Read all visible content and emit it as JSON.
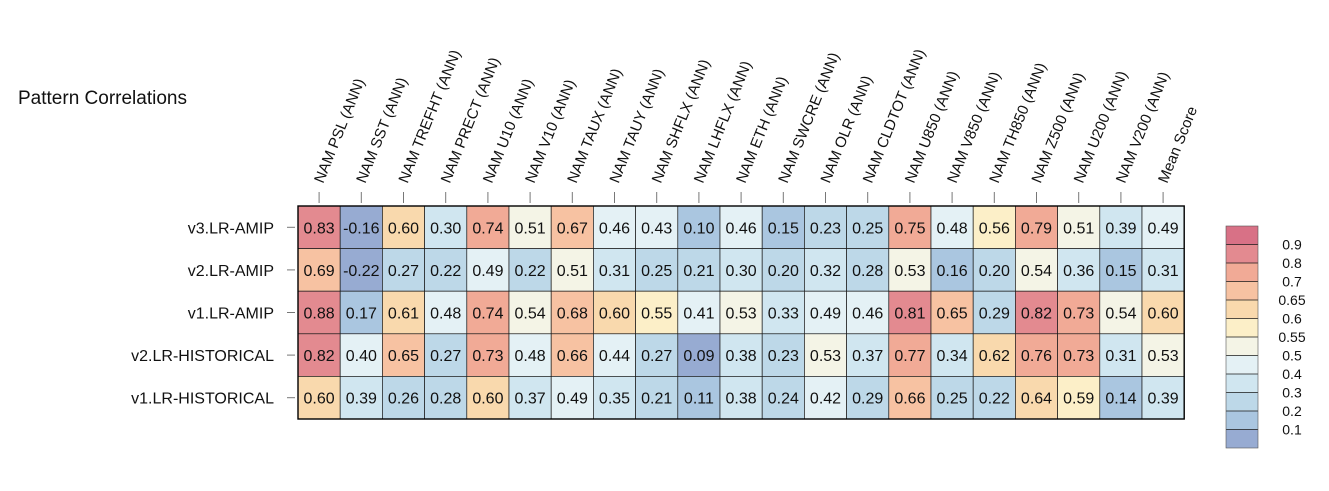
{
  "title": "Pattern Correlations",
  "chart_data": {
    "type": "heatmap",
    "rows": [
      "v3.LR-AMIP",
      "v2.LR-AMIP",
      "v1.LR-AMIP",
      "v2.LR-HISTORICAL",
      "v1.LR-HISTORICAL"
    ],
    "columns": [
      "NAM PSL (ANN)",
      "NAM SST (ANN)",
      "NAM TREFHT (ANN)",
      "NAM PRECT (ANN)",
      "NAM U10 (ANN)",
      "NAM V10 (ANN)",
      "NAM TAUX (ANN)",
      "NAM TAUY (ANN)",
      "NAM SHFLX (ANN)",
      "NAM LHFLX (ANN)",
      "NAM ETH (ANN)",
      "NAM SWCRE (ANN)",
      "NAM OLR (ANN)",
      "NAM CLDTOT (ANN)",
      "NAM U850 (ANN)",
      "NAM V850 (ANN)",
      "NAM TH850 (ANN)",
      "NAM Z500 (ANN)",
      "NAM U200 (ANN)",
      "NAM V200 (ANN)",
      "Mean Score"
    ],
    "values": [
      [
        0.83,
        -0.16,
        0.6,
        0.3,
        0.74,
        0.51,
        0.67,
        0.46,
        0.43,
        0.1,
        0.46,
        0.15,
        0.23,
        0.25,
        0.75,
        0.48,
        0.56,
        0.79,
        0.51,
        0.39,
        0.49
      ],
      [
        0.69,
        -0.22,
        0.27,
        0.22,
        0.49,
        0.22,
        0.51,
        0.31,
        0.25,
        0.21,
        0.3,
        0.2,
        0.32,
        0.28,
        0.53,
        0.16,
        0.2,
        0.54,
        0.36,
        0.15,
        0.31
      ],
      [
        0.88,
        0.17,
        0.61,
        0.48,
        0.74,
        0.54,
        0.68,
        0.6,
        0.55,
        0.41,
        0.53,
        0.33,
        0.49,
        0.46,
        0.81,
        0.65,
        0.29,
        0.82,
        0.73,
        0.54,
        0.6
      ],
      [
        0.82,
        0.4,
        0.65,
        0.27,
        0.73,
        0.48,
        0.66,
        0.44,
        0.27,
        0.09,
        0.38,
        0.23,
        0.53,
        0.37,
        0.77,
        0.34,
        0.62,
        0.76,
        0.73,
        0.31,
        0.53
      ],
      [
        0.6,
        0.39,
        0.26,
        0.28,
        0.6,
        0.37,
        0.49,
        0.35,
        0.21,
        0.11,
        0.38,
        0.24,
        0.42,
        0.29,
        0.66,
        0.25,
        0.22,
        0.64,
        0.59,
        0.14,
        0.39
      ]
    ],
    "colorbar": {
      "boundaries": [
        0.05,
        0.1,
        0.2,
        0.3,
        0.4,
        0.5,
        0.55,
        0.6,
        0.65,
        0.7,
        0.8,
        0.9,
        0.95
      ],
      "ticks": [
        "0.1",
        "0.2",
        "0.3",
        "0.4",
        "0.5",
        "0.55",
        "0.6",
        "0.65",
        "0.7",
        "0.8",
        "0.9"
      ],
      "colors": [
        "#97abd2",
        "#aac6e0",
        "#bdd8e8",
        "#d0e6f0",
        "#e4f1f5",
        "#f4f4e6",
        "#fcefc8",
        "#f9d9ad",
        "#f7c2a2",
        "#f1aa96",
        "#e38a90",
        "#d87186"
      ]
    },
    "grid": true,
    "legend_position": "right"
  }
}
